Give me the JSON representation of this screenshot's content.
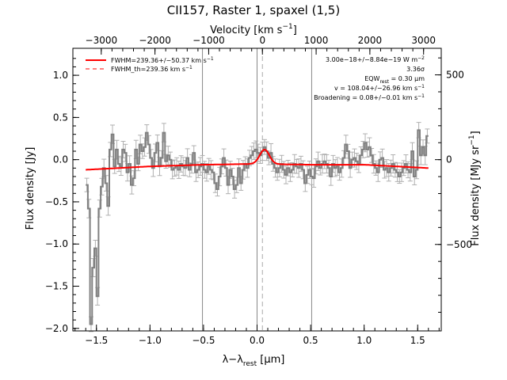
{
  "chart_data": {
    "type": "line",
    "title": "CII157, Raster 1, spaxel (1,5)",
    "xlabel": "λ−λ",
    "xlabel_sub": "rest",
    "xlabel_unit": " [μm]",
    "ylabel": "Flux density [Jy]",
    "top_axis": {
      "label_prefix": "Velocity [km s",
      "label_sup": "−1",
      "label_suffix": "]",
      "ticks": [
        -3000,
        -2000,
        -1000,
        0,
        1000,
        2000,
        3000
      ],
      "tick_labels": [
        "−3000",
        "−2000",
        "−1000",
        "0",
        "1000",
        "2000",
        "3000"
      ]
    },
    "right_axis": {
      "label_prefix": "Flux density [MJy sr",
      "label_sup": "−1",
      "label_suffix": "]",
      "ticks": [
        500,
        0,
        -500
      ],
      "tick_labels": [
        "500",
        "0",
        "−500"
      ]
    },
    "xlim": [
      -1.72,
      1.72
    ],
    "ylim": [
      -2.03,
      1.32
    ],
    "x_ticks": [
      -1.5,
      -1.0,
      -0.5,
      0.0,
      0.5,
      1.0,
      1.5
    ],
    "x_tick_labels": [
      "−1.5",
      "−1.0",
      "−0.5",
      "0.0",
      "0.5",
      "1.0",
      "1.5"
    ],
    "y_ticks": [
      1.0,
      0.5,
      0.0,
      -0.5,
      -1.0,
      -1.5,
      -2.0
    ],
    "y_tick_labels": [
      "1.0",
      "0.5",
      "0.0",
      "−0.5",
      "−1.0",
      "−1.5",
      "−2.0"
    ],
    "vertical_lines": [
      -0.51,
      0.0,
      0.51
    ],
    "dashed_line_x": 0.05,
    "legend": {
      "position": "top-left",
      "entries": [
        {
          "label": "FWHM=239.36+/−50.37 km s",
          "sup": "−1",
          "style": "solid",
          "color": "#ff0000"
        },
        {
          "label": "FWHM_th=239.36 km s",
          "sup": "−1",
          "style": "dashed",
          "color": "#ff0000"
        }
      ]
    },
    "annotations": [
      {
        "id": "flux",
        "text": "3.00e−18+/−8.84e−19 W m",
        "sup": "−2"
      },
      {
        "id": "sigma",
        "text": "3.36σ"
      },
      {
        "id": "eqw",
        "text_a": "EQW",
        "sub": "rest",
        "text_b": " = 0.30 μm"
      },
      {
        "id": "vel",
        "text": "v = 108.04+/−26.96 km s",
        "sup": "−1"
      },
      {
        "id": "broad",
        "text": "Broadening = 0.08+/−0.01 km s",
        "sup": "−1"
      }
    ],
    "series": [
      {
        "name": "spectrum",
        "color": "#808080",
        "style": "step",
        "x": [
          -1.59,
          -1.57,
          -1.55,
          -1.53,
          -1.51,
          -1.49,
          -1.47,
          -1.45,
          -1.43,
          -1.41,
          -1.39,
          -1.37,
          -1.35,
          -1.33,
          -1.31,
          -1.29,
          -1.27,
          -1.25,
          -1.23,
          -1.21,
          -1.19,
          -1.17,
          -1.15,
          -1.13,
          -1.11,
          -1.09,
          -1.07,
          -1.05,
          -1.03,
          -1.01,
          -0.99,
          -0.97,
          -0.95,
          -0.93,
          -0.91,
          -0.89,
          -0.87,
          -0.85,
          -0.83,
          -0.81,
          -0.79,
          -0.77,
          -0.75,
          -0.73,
          -0.71,
          -0.69,
          -0.67,
          -0.65,
          -0.63,
          -0.61,
          -0.59,
          -0.57,
          -0.55,
          -0.53,
          -0.51,
          -0.49,
          -0.47,
          -0.45,
          -0.43,
          -0.41,
          -0.39,
          -0.37,
          -0.35,
          -0.33,
          -0.31,
          -0.29,
          -0.27,
          -0.25,
          -0.23,
          -0.21,
          -0.19,
          -0.17,
          -0.15,
          -0.13,
          -0.11,
          -0.09,
          -0.07,
          -0.05,
          -0.03,
          -0.01,
          0.01,
          0.03,
          0.05,
          0.07,
          0.09,
          0.11,
          0.13,
          0.15,
          0.17,
          0.19,
          0.21,
          0.23,
          0.25,
          0.27,
          0.29,
          0.31,
          0.33,
          0.35,
          0.37,
          0.39,
          0.41,
          0.43,
          0.45,
          0.47,
          0.49,
          0.51,
          0.53,
          0.55,
          0.57,
          0.59,
          0.61,
          0.63,
          0.65,
          0.67,
          0.69,
          0.71,
          0.73,
          0.75,
          0.77,
          0.79,
          0.81,
          0.83,
          0.85,
          0.87,
          0.89,
          0.91,
          0.93,
          0.95,
          0.97,
          0.99,
          1.01,
          1.03,
          1.05,
          1.07,
          1.09,
          1.11,
          1.13,
          1.15,
          1.17,
          1.19,
          1.21,
          1.23,
          1.25,
          1.27,
          1.29,
          1.31,
          1.33,
          1.35,
          1.37,
          1.39,
          1.41,
          1.43,
          1.45,
          1.47,
          1.49,
          1.51,
          1.53,
          1.55,
          1.57,
          1.59
        ],
        "y": [
          -0.3,
          -0.58,
          -1.95,
          -1.28,
          -1.05,
          -1.62,
          -0.58,
          -0.32,
          -0.1,
          -0.28,
          -0.55,
          0.12,
          0.3,
          -0.08,
          0.12,
          -0.05,
          -0.08,
          0.12,
          0.08,
          -0.15,
          -0.05,
          -0.3,
          -0.22,
          0.12,
          -0.05,
          0.18,
          0.1,
          0.15,
          0.32,
          0.18,
          0.02,
          -0.1,
          0.08,
          0.2,
          -0.08,
          0.02,
          0.32,
          -0.02,
          0.05,
          0.0,
          -0.12,
          -0.1,
          -0.08,
          -0.12,
          -0.05,
          -0.08,
          -0.1,
          0.02,
          -0.12,
          -0.05,
          0.08,
          -0.15,
          -0.12,
          -0.08,
          -0.05,
          -0.12,
          -0.15,
          -0.08,
          -0.12,
          -0.15,
          -0.28,
          -0.35,
          -0.2,
          -0.08,
          0.02,
          -0.1,
          -0.3,
          -0.12,
          -0.2,
          -0.35,
          -0.3,
          -0.1,
          -0.28,
          -0.12,
          -0.05,
          -0.1,
          0.02,
          0.05,
          0.1,
          0.12,
          0.08,
          0.05,
          0.1,
          0.15,
          0.1,
          0.02,
          0.08,
          -0.05,
          -0.1,
          -0.15,
          -0.1,
          -0.05,
          -0.12,
          -0.18,
          -0.1,
          -0.15,
          -0.12,
          -0.05,
          -0.08,
          -0.1,
          -0.05,
          -0.12,
          -0.28,
          -0.18,
          -0.12,
          -0.2,
          -0.22,
          -0.08,
          -0.02,
          -0.1,
          -0.05,
          -0.02,
          -0.05,
          -0.1,
          -0.2,
          -0.05,
          -0.1,
          -0.08,
          -0.15,
          -0.1,
          0.02,
          0.18,
          0.1,
          -0.1,
          0.0,
          0.02,
          -0.02,
          -0.05,
          0.05,
          0.12,
          0.2,
          0.12,
          0.15,
          0.05,
          -0.05,
          -0.1,
          -0.15,
          0.0,
          0.02,
          -0.12,
          -0.1,
          -0.15,
          -0.1,
          -0.05,
          -0.12,
          -0.15,
          -0.2,
          -0.15,
          -0.1,
          -0.05,
          -0.12,
          -0.15,
          0.1,
          -0.2,
          -0.12,
          0.35,
          0.05,
          0.15,
          0.05,
          0.28
        ]
      },
      {
        "name": "fit",
        "color": "#ff0000",
        "style": "line",
        "baseline": [
          [
            -1.6,
            -0.12
          ],
          [
            -1.0,
            -0.08
          ],
          [
            -0.5,
            -0.06
          ],
          [
            0.0,
            -0.05
          ],
          [
            0.5,
            -0.06
          ],
          [
            1.0,
            -0.06
          ],
          [
            1.6,
            -0.1
          ]
        ],
        "gaussian": {
          "center": 0.07,
          "sigma": 0.045,
          "amplitude": 0.17
        }
      }
    ]
  }
}
